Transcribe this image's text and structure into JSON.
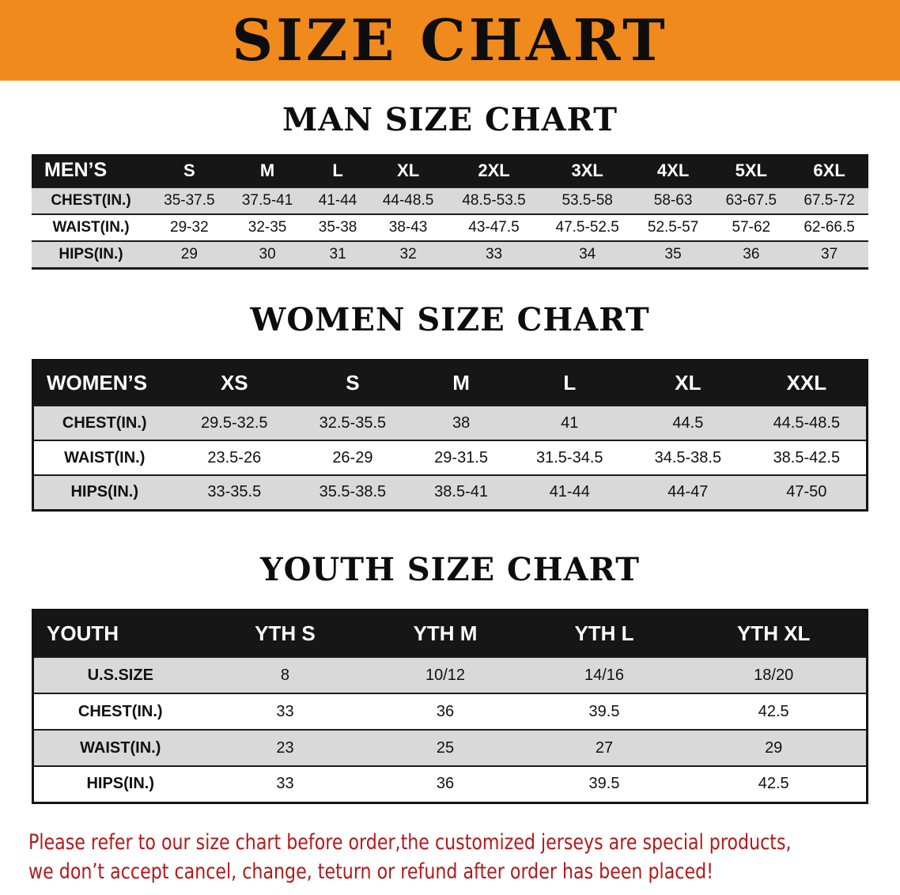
{
  "banner": {
    "title": "SIZE CHART",
    "bg_color": "#F08A1C"
  },
  "sections": {
    "men": {
      "heading": "MAN SIZE CHART",
      "table": {
        "header": [
          "MEN’S",
          "S",
          "M",
          "L",
          "XL",
          "2XL",
          "3XL",
          "4XL",
          "5XL",
          "6XL"
        ],
        "rows": [
          [
            "CHEST(IN.)",
            "35-37.5",
            "37.5-41",
            "41-44",
            "44-48.5",
            "48.5-53.5",
            "53.5-58",
            "58-63",
            "63-67.5",
            "67.5-72"
          ],
          [
            "WAIST(IN.)",
            "29-32",
            "32-35",
            "35-38",
            "38-43",
            "43-47.5",
            "47.5-52.5",
            "52.5-57",
            "57-62",
            "62-66.5"
          ],
          [
            "HIPS(IN.)",
            "29",
            "30",
            "31",
            "32",
            "33",
            "34",
            "35",
            "36",
            "37"
          ]
        ]
      }
    },
    "women": {
      "heading": "WOMEN SIZE CHART",
      "table": {
        "header": [
          "WOMEN’S",
          "XS",
          "S",
          "M",
          "L",
          "XL",
          "XXL"
        ],
        "rows": [
          [
            "CHEST(IN.)",
            "29.5-32.5",
            "32.5-35.5",
            "38",
            "41",
            "44.5",
            "44.5-48.5"
          ],
          [
            "WAIST(IN.)",
            "23.5-26",
            "26-29",
            "29-31.5",
            "31.5-34.5",
            "34.5-38.5",
            "38.5-42.5"
          ],
          [
            "HIPS(IN.)",
            "33-35.5",
            "35.5-38.5",
            "38.5-41",
            "41-44",
            "44-47",
            "47-50"
          ]
        ]
      }
    },
    "youth": {
      "heading": "YOUTH SIZE CHART",
      "table": {
        "header": [
          "YOUTH",
          "YTH S",
          "YTH M",
          "YTH L",
          "YTH XL"
        ],
        "rows": [
          [
            "U.S.SIZE",
            "8",
            "10/12",
            "14/16",
            "18/20"
          ],
          [
            "CHEST(IN.)",
            "33",
            "36",
            "39.5",
            "42.5"
          ],
          [
            "WAIST(IN.)",
            "23",
            "25",
            "27",
            "29"
          ],
          [
            "HIPS(IN.)",
            "33",
            "36",
            "39.5",
            "42.5"
          ]
        ]
      }
    }
  },
  "disclaimer": {
    "line1": "Please refer to our size chart before order,the customized jerseys are special products,",
    "line2": "we don’t accept cancel, change, teturn or refund after order has been placed!",
    "text_color": "#B2191B"
  },
  "colors": {
    "table_header_bg": "#161616",
    "alt_row_bg": "#D9D9D9",
    "banner_bg": "#F08A1C"
  }
}
